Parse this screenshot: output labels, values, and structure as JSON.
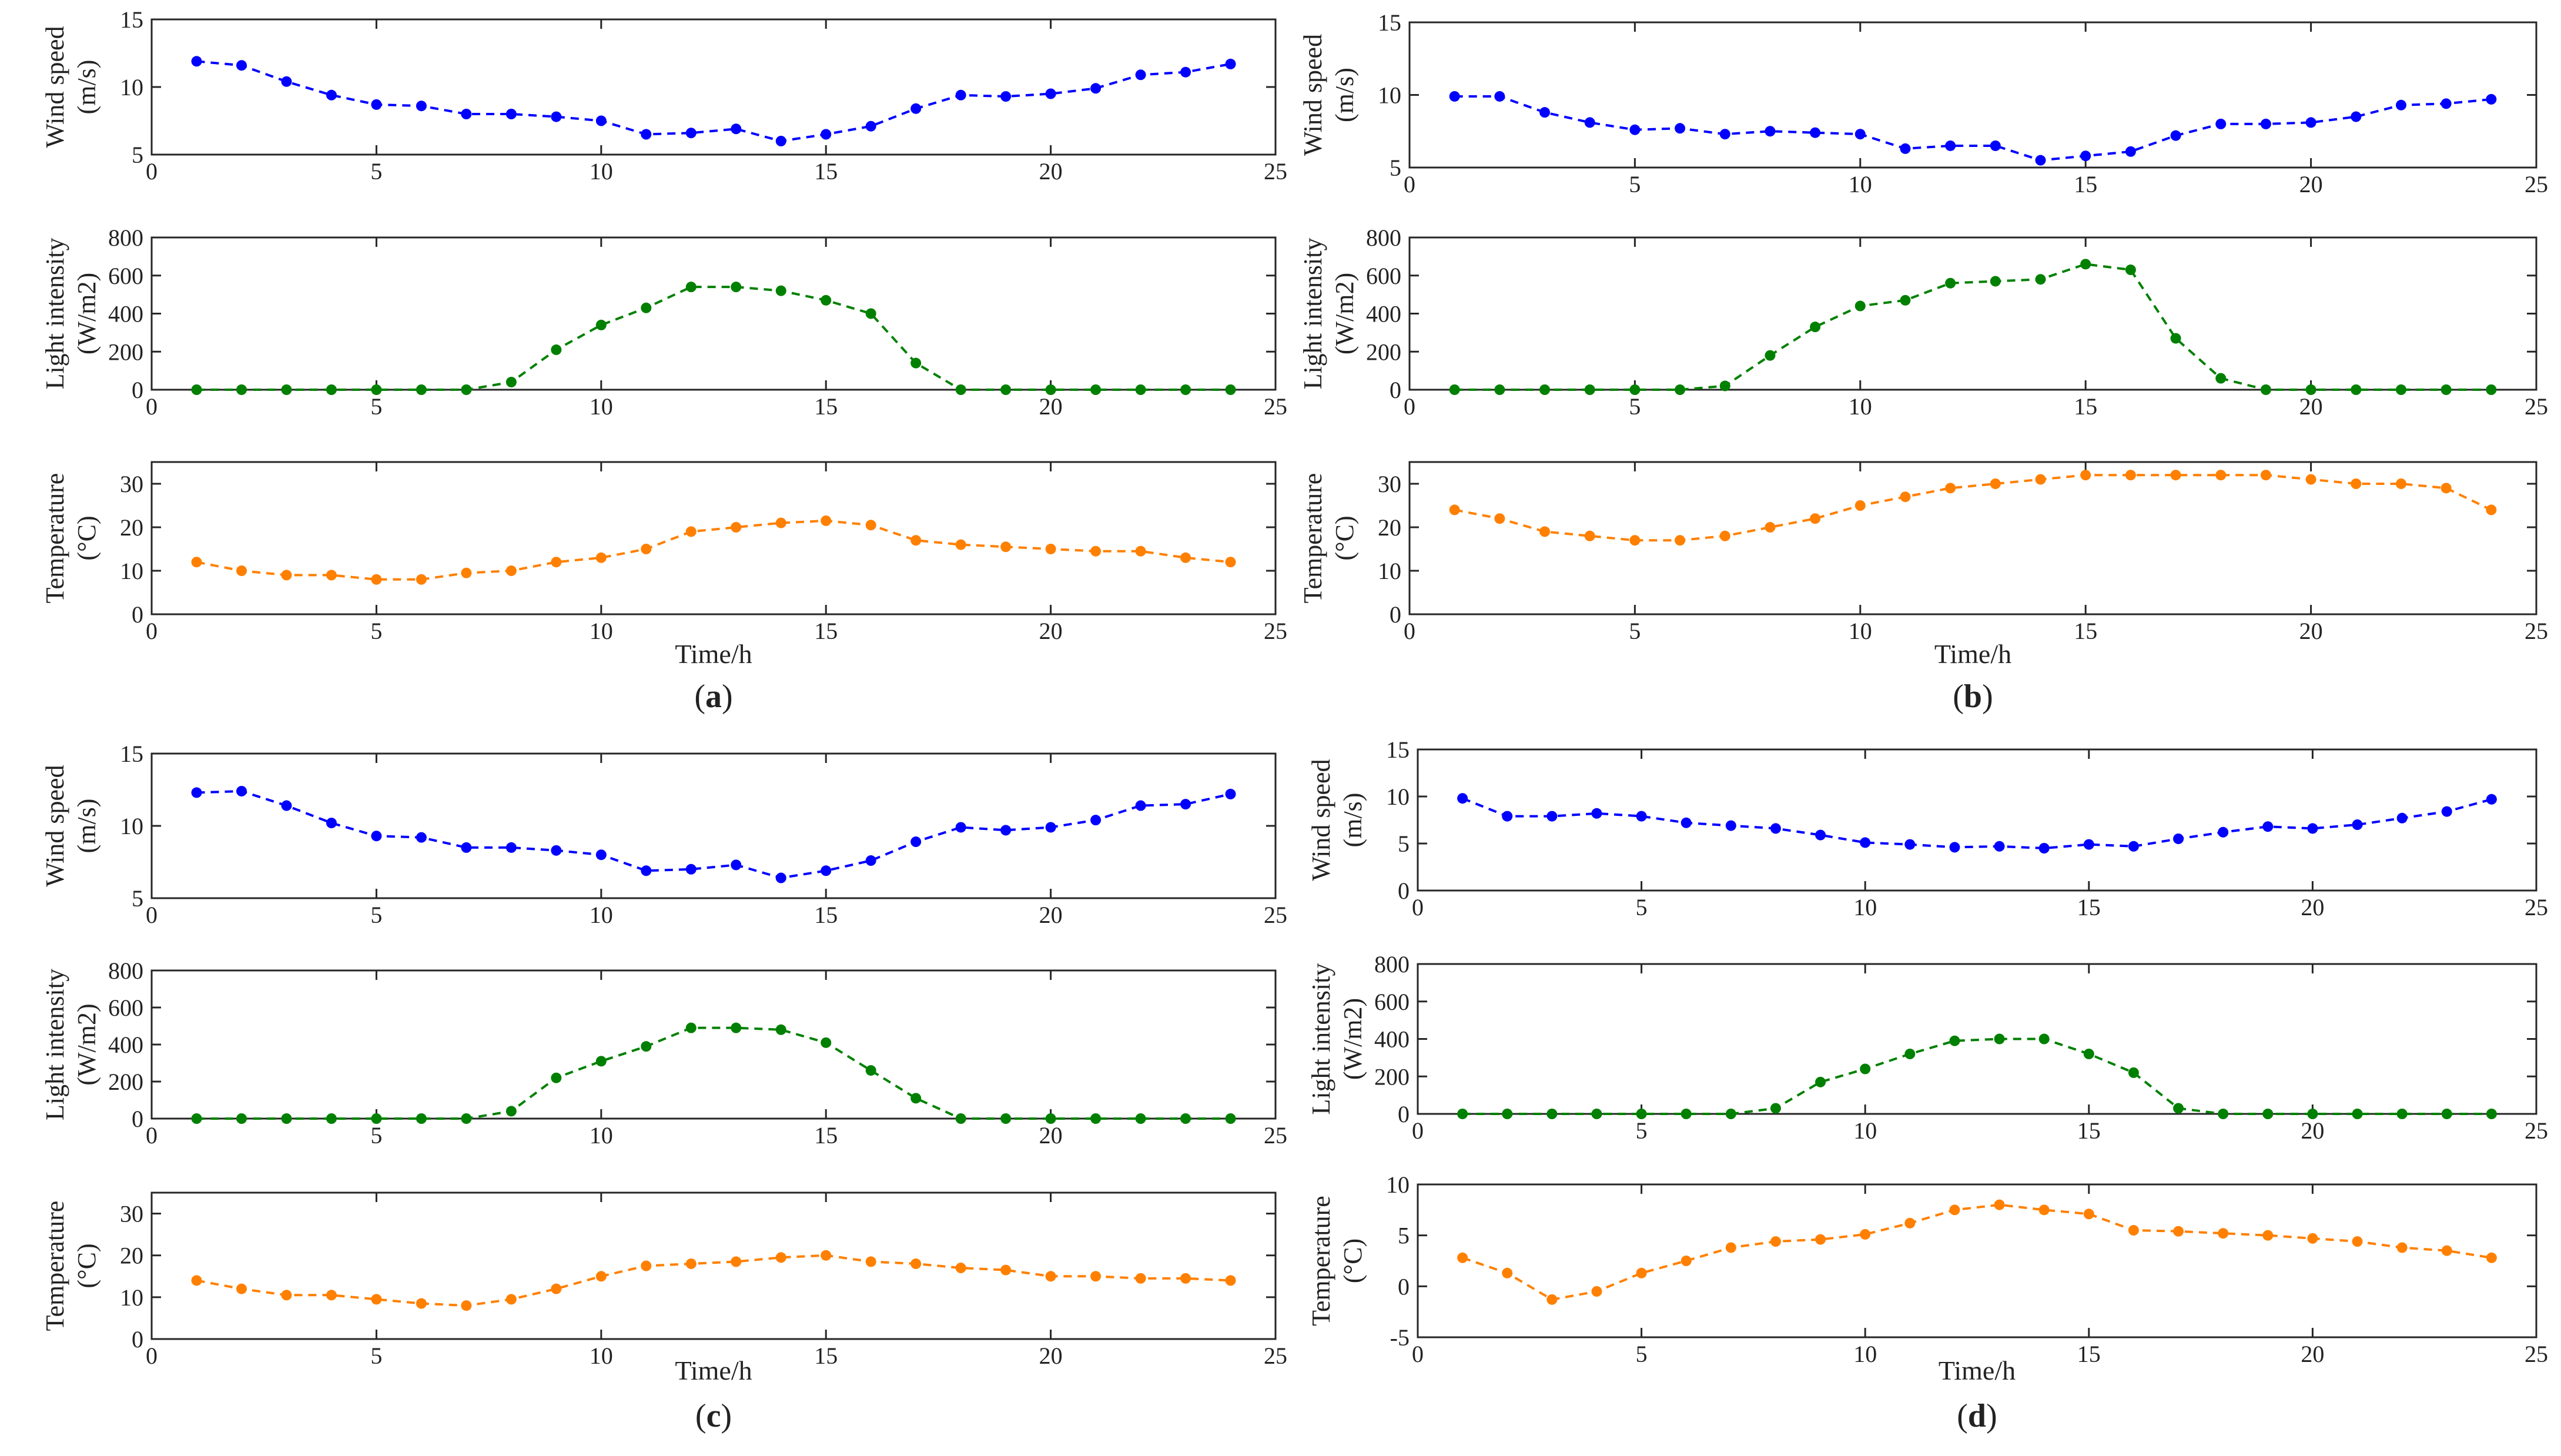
{
  "colors": {
    "wind": "#0000ff",
    "light": "#008000",
    "temperature": "#ff8000"
  },
  "chart_data": [
    {
      "panel": "(a)",
      "x": [
        1,
        2,
        3,
        4,
        5,
        6,
        7,
        8,
        9,
        10,
        11,
        12,
        13,
        14,
        15,
        16,
        17,
        18,
        19,
        20,
        21,
        22,
        23,
        24
      ],
      "xlim": [
        0,
        25
      ],
      "xticks": [
        0,
        5,
        10,
        15,
        20,
        25
      ],
      "xlabel": "Time/h",
      "subplots": [
        {
          "key": "wind",
          "type": "line",
          "ylabel": [
            "Wind speed",
            "(m/s)"
          ],
          "ylim": [
            5,
            15
          ],
          "yticks": [
            5,
            10,
            15
          ],
          "values": [
            11.9,
            11.6,
            10.4,
            9.4,
            8.7,
            8.6,
            8.0,
            8.0,
            7.8,
            7.5,
            6.5,
            6.6,
            6.9,
            6.0,
            6.5,
            7.1,
            8.4,
            9.4,
            9.3,
            9.5,
            9.9,
            10.9,
            11.1,
            11.7
          ]
        },
        {
          "key": "light",
          "type": "line",
          "ylabel": [
            "Light intensity",
            "(W/m2)"
          ],
          "ylim": [
            0,
            800
          ],
          "yticks": [
            0,
            200,
            400,
            600,
            800
          ],
          "values": [
            0,
            0,
            0,
            0,
            0,
            0,
            0,
            40,
            210,
            340,
            430,
            540,
            540,
            520,
            470,
            400,
            140,
            0,
            0,
            0,
            0,
            0,
            0,
            0
          ]
        },
        {
          "key": "temperature",
          "type": "line",
          "ylabel": [
            "Temperature",
            "(°C)"
          ],
          "ylim": [
            0,
            35
          ],
          "yticks": [
            0,
            10,
            20,
            30
          ],
          "values": [
            12,
            10,
            9,
            9,
            8,
            8,
            9.5,
            10,
            12,
            13,
            15,
            19,
            20,
            21,
            21.5,
            20.5,
            17,
            16,
            15.5,
            15,
            14.5,
            14.5,
            13,
            12
          ]
        }
      ]
    },
    {
      "panel": "(b)",
      "x": [
        1,
        2,
        3,
        4,
        5,
        6,
        7,
        8,
        9,
        10,
        11,
        12,
        13,
        14,
        15,
        16,
        17,
        18,
        19,
        20,
        21,
        22,
        23,
        24
      ],
      "xlim": [
        0,
        25
      ],
      "xticks": [
        0,
        5,
        10,
        15,
        20,
        25
      ],
      "xlabel": "Time/h",
      "subplots": [
        {
          "key": "wind",
          "type": "line",
          "ylabel": [
            "Wind speed",
            "(m/s)"
          ],
          "ylim": [
            5,
            15
          ],
          "yticks": [
            5,
            10,
            15
          ],
          "values": [
            9.9,
            9.9,
            8.8,
            8.1,
            7.6,
            7.7,
            7.3,
            7.5,
            7.4,
            7.3,
            6.3,
            6.5,
            6.5,
            5.5,
            5.8,
            6.1,
            7.2,
            8.0,
            8.0,
            8.1,
            8.5,
            9.3,
            9.4,
            9.7
          ]
        },
        {
          "key": "light",
          "type": "line",
          "ylabel": [
            "Light intensity",
            "(W/m2)"
          ],
          "ylim": [
            0,
            800
          ],
          "yticks": [
            0,
            200,
            400,
            600,
            800
          ],
          "values": [
            0,
            0,
            0,
            0,
            0,
            0,
            20,
            180,
            330,
            440,
            470,
            560,
            570,
            580,
            660,
            630,
            270,
            60,
            0,
            0,
            0,
            0,
            0,
            0
          ]
        },
        {
          "key": "temperature",
          "type": "line",
          "ylabel": [
            "Temperature",
            "(°C)"
          ],
          "ylim": [
            0,
            35
          ],
          "yticks": [
            0,
            10,
            20,
            30
          ],
          "values": [
            24,
            22,
            19,
            18,
            17,
            17,
            18,
            20,
            22,
            25,
            27,
            29,
            30,
            31,
            32,
            32,
            32,
            32,
            32,
            31,
            30,
            30,
            29,
            24
          ]
        }
      ]
    },
    {
      "panel": "(c)",
      "x": [
        1,
        2,
        3,
        4,
        5,
        6,
        7,
        8,
        9,
        10,
        11,
        12,
        13,
        14,
        15,
        16,
        17,
        18,
        19,
        20,
        21,
        22,
        23,
        24
      ],
      "xlim": [
        0,
        25
      ],
      "xticks": [
        0,
        5,
        10,
        15,
        20,
        25
      ],
      "xlabel": "Time/h",
      "subplots": [
        {
          "key": "wind",
          "type": "line",
          "ylabel": [
            "Wind speed",
            "(m/s)"
          ],
          "ylim": [
            5,
            15
          ],
          "yticks": [
            5,
            10,
            15
          ],
          "values": [
            12.3,
            12.4,
            11.4,
            10.2,
            9.3,
            9.2,
            8.5,
            8.5,
            8.3,
            8.0,
            6.9,
            7.0,
            7.3,
            6.4,
            6.9,
            7.6,
            8.9,
            9.9,
            9.7,
            9.9,
            10.4,
            11.4,
            11.5,
            12.2
          ]
        },
        {
          "key": "light",
          "type": "line",
          "ylabel": [
            "Light intensity",
            "(W/m2)"
          ],
          "ylim": [
            0,
            800
          ],
          "yticks": [
            0,
            200,
            400,
            600,
            800
          ],
          "values": [
            0,
            0,
            0,
            0,
            0,
            0,
            0,
            40,
            220,
            310,
            390,
            490,
            490,
            480,
            410,
            260,
            110,
            0,
            0,
            0,
            0,
            0,
            0,
            0
          ]
        },
        {
          "key": "temperature",
          "type": "line",
          "ylabel": [
            "Temperature",
            "(°C)"
          ],
          "ylim": [
            0,
            35
          ],
          "yticks": [
            0,
            10,
            20,
            30
          ],
          "values": [
            14,
            12,
            10.5,
            10.5,
            9.5,
            8.5,
            8,
            9.5,
            12,
            15,
            17.5,
            18,
            18.5,
            19.5,
            20,
            18.5,
            18,
            17,
            16.5,
            15,
            15,
            14.5,
            14.5,
            14
          ]
        }
      ]
    },
    {
      "panel": "(d)",
      "x": [
        1,
        2,
        3,
        4,
        5,
        6,
        7,
        8,
        9,
        10,
        11,
        12,
        13,
        14,
        15,
        16,
        17,
        18,
        19,
        20,
        21,
        22,
        23,
        24
      ],
      "xlim": [
        0,
        25
      ],
      "xticks": [
        0,
        5,
        10,
        15,
        20,
        25
      ],
      "xlabel": "Time/h",
      "subplots": [
        {
          "key": "wind",
          "type": "line",
          "ylabel": [
            "Wind speed",
            "(m/s)"
          ],
          "ylim": [
            0,
            15
          ],
          "yticks": [
            0,
            5,
            10,
            15
          ],
          "values": [
            9.8,
            7.9,
            7.9,
            8.2,
            7.9,
            7.2,
            6.9,
            6.6,
            5.9,
            5.1,
            4.9,
            4.6,
            4.7,
            4.5,
            4.9,
            4.7,
            5.5,
            6.2,
            6.8,
            6.6,
            7.0,
            7.7,
            8.4,
            9.7
          ]
        },
        {
          "key": "light",
          "type": "line",
          "ylabel": [
            "Light intensity",
            "(W/m2)"
          ],
          "ylim": [
            0,
            800
          ],
          "yticks": [
            0,
            200,
            400,
            600,
            800
          ],
          "values": [
            0,
            0,
            0,
            0,
            0,
            0,
            0,
            30,
            170,
            240,
            320,
            390,
            400,
            400,
            320,
            220,
            30,
            0,
            0,
            0,
            0,
            0,
            0,
            0
          ]
        },
        {
          "key": "temperature",
          "type": "line",
          "ylabel": [
            "Temperature",
            "(°C)"
          ],
          "ylim": [
            -5,
            10
          ],
          "yticks": [
            -5,
            0,
            5,
            10
          ],
          "values": [
            2.8,
            1.3,
            -1.3,
            -0.5,
            1.3,
            2.5,
            3.8,
            4.4,
            4.6,
            5.1,
            6.2,
            7.5,
            8.0,
            7.5,
            7.1,
            5.5,
            5.4,
            5.2,
            5.0,
            4.7,
            4.4,
            3.8,
            3.5,
            2.8
          ]
        }
      ]
    }
  ]
}
